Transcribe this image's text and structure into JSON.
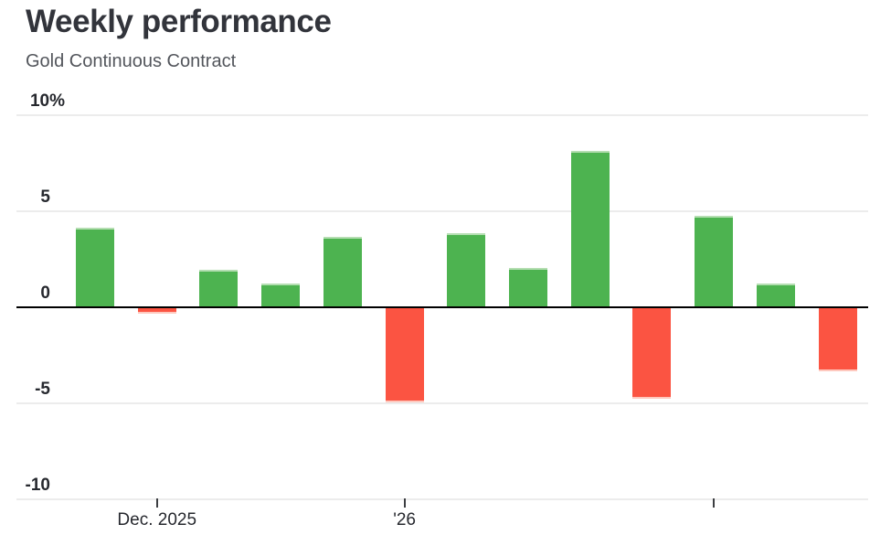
{
  "chart_data": {
    "type": "bar",
    "title": "Weekly performance",
    "subtitle": "Gold Continuous Contract",
    "unit": "%",
    "values": [
      4.2,
      -0.3,
      2.0,
      1.3,
      3.7,
      -4.9,
      3.9,
      2.1,
      8.2,
      -4.7,
      4.8,
      1.3,
      -3.3
    ],
    "x_ticks": [
      {
        "index": 1,
        "label": "Dec. 2025"
      },
      {
        "index": 5,
        "label": "'26"
      },
      {
        "index": 10,
        "label": ""
      }
    ],
    "y_ticks": [
      {
        "value": 10,
        "label": "10%"
      },
      {
        "value": 5,
        "label": "5"
      },
      {
        "value": 0,
        "label": "0"
      },
      {
        "value": -5,
        "label": "-5"
      },
      {
        "value": -10,
        "label": "-10"
      }
    ],
    "ylim": [
      -10,
      10
    ],
    "grid": true,
    "legend": false,
    "colors": {
      "positive": "#4db350",
      "negative": "#fb5442",
      "zero_line": "#000000",
      "gridline": "#ececec",
      "axis_text": "#26282e",
      "title_text": "#32343b",
      "subtitle_text": "#53565c",
      "tick_mark": "#3c3e42"
    }
  }
}
